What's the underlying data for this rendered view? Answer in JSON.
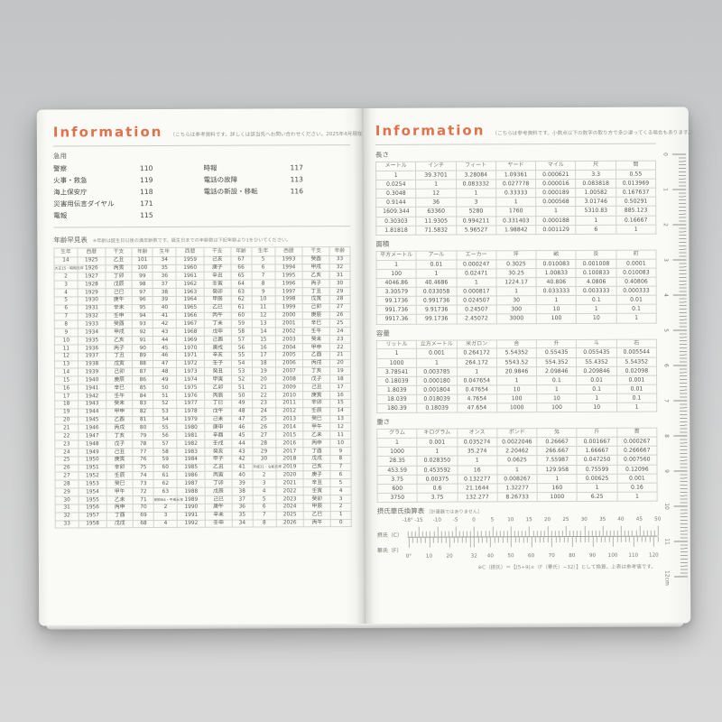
{
  "accent": "#e0714b",
  "left_page": {
    "header": {
      "title": "Information",
      "note": "（こちらは参考資料です。詳しくは該当先へお問い合わせください。2025年4月現在）"
    },
    "emergency": {
      "title": "急用",
      "col1": [
        {
          "label": "警察",
          "number": "110"
        },
        {
          "label": "火事・救急",
          "number": "119"
        },
        {
          "label": "海上保安庁",
          "number": "118"
        },
        {
          "label": "災害用伝言ダイヤル",
          "number": "171"
        },
        {
          "label": "電報",
          "number": "115"
        }
      ],
      "col2": [
        {
          "label": "時報",
          "number": "117"
        },
        {
          "label": "電話の故障",
          "number": "113"
        },
        {
          "label": "電話の新設・移転",
          "number": "116"
        }
      ]
    },
    "age_table": {
      "title": "年齢早見表",
      "note": "※年齢は誕生日以後の満年齢数です。誕生日までの年齢数は下記年齢より1をひいてください。",
      "shrink_long": 6,
      "group_every": 4,
      "col_widths": [
        7.9,
        9.4,
        9,
        7,
        7.9,
        9.4,
        9,
        7,
        7.9,
        9.4,
        9,
        7
      ],
      "headers": [
        "生年",
        "西暦",
        "干支",
        "年齢",
        "生年",
        "西暦",
        "干支",
        "年齢",
        "生年",
        "西暦",
        "干支",
        "年齢"
      ],
      "rows": [
        [
          "14",
          "1925",
          "乙丑",
          "101",
          "34",
          "1959",
          "己亥",
          "67",
          "5",
          "1993",
          "癸酉",
          "33"
        ],
        [
          "大正15・昭和元年",
          "1926",
          "丙寅",
          "100",
          "35",
          "1960",
          "庚子",
          "66",
          "6",
          "1994",
          "甲戌",
          "32"
        ],
        [
          "2",
          "1927",
          "丁卯",
          "99",
          "36",
          "1961",
          "辛丑",
          "65",
          "7",
          "1995",
          "乙亥",
          "31"
        ],
        [
          "3",
          "1928",
          "戊辰",
          "98",
          "37",
          "1962",
          "壬寅",
          "64",
          "8",
          "1996",
          "丙子",
          "30"
        ],
        [
          "4",
          "1929",
          "己巳",
          "97",
          "38",
          "1963",
          "癸卯",
          "63",
          "9",
          "1997",
          "丁丑",
          "29"
        ],
        [
          "5",
          "1930",
          "庚午",
          "96",
          "39",
          "1964",
          "甲辰",
          "62",
          "10",
          "1998",
          "戊寅",
          "28"
        ],
        [
          "6",
          "1931",
          "辛未",
          "95",
          "40",
          "1965",
          "乙巳",
          "61",
          "11",
          "1999",
          "己卯",
          "27"
        ],
        [
          "7",
          "1932",
          "壬申",
          "94",
          "41",
          "1966",
          "丙午",
          "60",
          "12",
          "2000",
          "庚辰",
          "26"
        ],
        [
          "8",
          "1933",
          "癸酉",
          "93",
          "42",
          "1967",
          "丁未",
          "59",
          "13",
          "2001",
          "辛巳",
          "25"
        ],
        [
          "9",
          "1934",
          "甲戌",
          "92",
          "43",
          "1968",
          "戊申",
          "58",
          "14",
          "2002",
          "壬午",
          "24"
        ],
        [
          "10",
          "1935",
          "乙亥",
          "91",
          "44",
          "1969",
          "己酉",
          "57",
          "15",
          "2003",
          "癸未",
          "23"
        ],
        [
          "11",
          "1936",
          "丙子",
          "90",
          "45",
          "1970",
          "庚戌",
          "56",
          "16",
          "2004",
          "甲申",
          "22"
        ],
        [
          "12",
          "1937",
          "丁丑",
          "89",
          "46",
          "1971",
          "辛亥",
          "55",
          "17",
          "2005",
          "乙酉",
          "21"
        ],
        [
          "13",
          "1938",
          "戊寅",
          "88",
          "47",
          "1972",
          "壬子",
          "54",
          "18",
          "2006",
          "丙戌",
          "20"
        ],
        [
          "14",
          "1939",
          "己卯",
          "87",
          "48",
          "1973",
          "癸丑",
          "53",
          "19",
          "2007",
          "丁亥",
          "19"
        ],
        [
          "15",
          "1940",
          "庚辰",
          "86",
          "49",
          "1974",
          "甲寅",
          "52",
          "20",
          "2008",
          "戊子",
          "18"
        ],
        [
          "16",
          "1941",
          "辛巳",
          "85",
          "50",
          "1975",
          "乙卯",
          "51",
          "21",
          "2009",
          "己丑",
          "17"
        ],
        [
          "17",
          "1942",
          "壬午",
          "84",
          "51",
          "1976",
          "丙辰",
          "50",
          "22",
          "2010",
          "庚寅",
          "16"
        ],
        [
          "18",
          "1943",
          "癸未",
          "83",
          "52",
          "1977",
          "丁巳",
          "49",
          "23",
          "2011",
          "辛卯",
          "15"
        ],
        [
          "19",
          "1944",
          "甲申",
          "82",
          "53",
          "1978",
          "戊午",
          "48",
          "24",
          "2012",
          "壬辰",
          "14"
        ],
        [
          "20",
          "1945",
          "乙酉",
          "81",
          "54",
          "1979",
          "己未",
          "47",
          "25",
          "2013",
          "癸巳",
          "13"
        ],
        [
          "21",
          "1946",
          "丙戌",
          "80",
          "55",
          "1980",
          "庚申",
          "46",
          "26",
          "2014",
          "甲午",
          "12"
        ],
        [
          "22",
          "1947",
          "丁亥",
          "79",
          "56",
          "1981",
          "辛酉",
          "45",
          "27",
          "2015",
          "乙未",
          "11"
        ],
        [
          "23",
          "1948",
          "戊子",
          "78",
          "57",
          "1982",
          "壬戌",
          "44",
          "28",
          "2016",
          "丙申",
          "10"
        ],
        [
          "24",
          "1949",
          "己丑",
          "77",
          "58",
          "1983",
          "癸亥",
          "43",
          "29",
          "2017",
          "丁酉",
          "9"
        ],
        [
          "25",
          "1950",
          "庚寅",
          "76",
          "59",
          "1984",
          "甲子",
          "42",
          "30",
          "2018",
          "戊戌",
          "8"
        ],
        [
          "26",
          "1951",
          "辛卯",
          "75",
          "60",
          "1985",
          "乙丑",
          "41",
          "平成31・令和元年",
          "2019",
          "己亥",
          "7"
        ],
        [
          "27",
          "1952",
          "壬辰",
          "74",
          "61",
          "1986",
          "丙寅",
          "40",
          "2",
          "2020",
          "庚子",
          "6"
        ],
        [
          "28",
          "1953",
          "癸巳",
          "73",
          "62",
          "1987",
          "丁卯",
          "39",
          "3",
          "2021",
          "辛丑",
          "5"
        ],
        [
          "29",
          "1954",
          "甲午",
          "72",
          "63",
          "1988",
          "戊辰",
          "38",
          "4",
          "2022",
          "壬寅",
          "4"
        ],
        [
          "30",
          "1955",
          "乙未",
          "71",
          "昭和64・平成元年",
          "1989",
          "己巳",
          "37",
          "5",
          "2023",
          "癸卯",
          "3"
        ],
        [
          "31",
          "1956",
          "丙申",
          "70",
          "2",
          "1990",
          "庚午",
          "36",
          "6",
          "2024",
          "甲辰",
          "2"
        ],
        [
          "32",
          "1957",
          "丁酉",
          "69",
          "3",
          "1991",
          "辛未",
          "35",
          "7",
          "2025",
          "乙巳",
          "1"
        ],
        [
          "33",
          "1958",
          "戊戌",
          "68",
          "4",
          "1992",
          "壬申",
          "34",
          "8",
          "2026",
          "丙午",
          "0"
        ]
      ]
    }
  },
  "right_page": {
    "header": {
      "title": "Information",
      "note": "（こちらは参考資料です。小数点以下の数字の取り方で多少違ってくる場合もあります。）"
    },
    "tables": [
      {
        "title": "長さ",
        "headers": [
          "メートル",
          "インチ",
          "フィート",
          "ヤード",
          "マイル",
          "尺",
          "間"
        ],
        "rows": [
          [
            "1",
            "39.3701",
            "3.28084",
            "1.09361",
            "0.000621",
            "3.3",
            "0.55"
          ],
          [
            "0.0254",
            "1",
            "0.083332",
            "0.027778",
            "0.000016",
            "0.083818",
            "0.013969"
          ],
          [
            "0.3048",
            "12",
            "1",
            "0.33333",
            "0.000189",
            "1.00582",
            "0.167637"
          ],
          [
            "0.9144",
            "36",
            "3",
            "1",
            "0.000568",
            "3.01746",
            "0.50291"
          ],
          [
            "1609.344",
            "63360",
            "5280",
            "1760",
            "1",
            "5310.83",
            "885.123"
          ],
          [
            "0.30303",
            "11.9305",
            "0.994211",
            "0.331403",
            "0.000188",
            "1",
            "0.16667"
          ],
          [
            "1.81818",
            "71.5832",
            "5.96527",
            "1.98842",
            "0.001129",
            "6",
            "1"
          ]
        ]
      },
      {
        "title": "面積",
        "headers": [
          "平方メートル",
          "アール",
          "エーカー",
          "坪",
          "畝",
          "反",
          "町"
        ],
        "rows": [
          [
            "1",
            "0.01",
            "0.000247",
            "0.3025",
            "0.010083",
            "0.001008",
            "0.0001"
          ],
          [
            "100",
            "1",
            "0.02471",
            "30.25",
            "1.00833",
            "0.100833",
            "0.010083"
          ],
          [
            "4046.86",
            "40.4686",
            "1",
            "1224.17",
            "40.806",
            "4.0806",
            "0.40806"
          ],
          [
            "3.30579",
            "0.033058",
            "0.000817",
            "1",
            "0.033333",
            "0.003333",
            "0.000333"
          ],
          [
            "99.1736",
            "0.991736",
            "0.024507",
            "30",
            "1",
            "0.1",
            "0.01"
          ],
          [
            "991.736",
            "9.91736",
            "0.24507",
            "300",
            "10",
            "1",
            "0.1"
          ],
          [
            "9917.36",
            "99.1736",
            "2.45072",
            "3000",
            "100",
            "10",
            "1"
          ]
        ]
      },
      {
        "title": "容量",
        "headers": [
          "リットル",
          "立方メートル",
          "米ガロン",
          "合",
          "升",
          "斗",
          "石"
        ],
        "rows": [
          [
            "1",
            "0.001",
            "0.264172",
            "5.54352",
            "0.55435",
            "0.055435",
            "0.005544"
          ],
          [
            "1000",
            "1",
            "264.172",
            "5543.52",
            "554.352",
            "55.4352",
            "5.54352"
          ],
          [
            "3.78541",
            "0.003785",
            "1",
            "20.9846",
            "2.09846",
            "0.209846",
            "0.02098"
          ],
          [
            "0.18039",
            "0.000180",
            "0.047654",
            "1",
            "0.1",
            "0.01",
            "0.001"
          ],
          [
            "1.8039",
            "0.001804",
            "0.47654",
            "10",
            "1",
            "0.1",
            "0.01"
          ],
          [
            "18.039",
            "0.018039",
            "4.7654",
            "100",
            "10",
            "1",
            "0.1"
          ],
          [
            "180.39",
            "0.18039",
            "47.654",
            "1000",
            "100",
            "10",
            "1"
          ]
        ]
      },
      {
        "title": "重さ",
        "headers": [
          "グラム",
          "キログラム",
          "オンス",
          "ポンド",
          "匁",
          "斤",
          "貫"
        ],
        "rows": [
          [
            "1",
            "0.001",
            "0.035274",
            "0.0022046",
            "0.26667",
            "0.001667",
            "0.000267"
          ],
          [
            "1000",
            "1",
            "35.274",
            "2.20462",
            "266.667",
            "1.66667",
            "0.266667"
          ],
          [
            "28.35",
            "0.028350",
            "1",
            "0.0625",
            "7.55987",
            "0.047250",
            "0.007560"
          ],
          [
            "453.59",
            "0.453592",
            "16",
            "1",
            "129.958",
            "0.75599",
            "0.12096"
          ],
          [
            "3.75",
            "0.00375",
            "0.132277",
            "0.008267",
            "1",
            "0.00625",
            "0.001"
          ],
          [
            "600",
            "0.6",
            "21.1644",
            "1.32277",
            "160",
            "1",
            "0.16"
          ],
          [
            "3750",
            "3.75",
            "132.277",
            "8.26733",
            "1000",
            "6.25",
            "1"
          ]
        ]
      }
    ],
    "temperature": {
      "title": "摂氏華氏換算表",
      "title_note": "［計量器ではありません］",
      "celsius_label": "摂氏（C）",
      "fahrenheit_label": "華氏（F）",
      "range": {
        "c_min": -18,
        "c_max": 50
      },
      "celsius": [
        {
          "v": -18,
          "label": "-18°"
        },
        {
          "v": -15,
          "label": "-15"
        },
        {
          "v": -10,
          "label": "-10"
        },
        {
          "v": -5,
          "label": "-5"
        },
        {
          "v": 0,
          "label": "0"
        },
        {
          "v": 5,
          "label": "5"
        },
        {
          "v": 10,
          "label": "10"
        },
        {
          "v": 15,
          "label": "15"
        },
        {
          "v": 20,
          "label": "20"
        },
        {
          "v": 25,
          "label": "25"
        },
        {
          "v": 30,
          "label": "30"
        },
        {
          "v": 35,
          "label": "35"
        },
        {
          "v": 40,
          "label": "40"
        },
        {
          "v": 45,
          "label": "45"
        },
        {
          "v": 50,
          "label": "50"
        }
      ],
      "fahrenheit": [
        {
          "v": 0,
          "label": "0°"
        },
        {
          "v": 10,
          "label": "10"
        },
        {
          "v": 20,
          "label": "20"
        },
        {
          "v": 32,
          "label": "32"
        },
        {
          "v": 40,
          "label": "40"
        },
        {
          "v": 50,
          "label": "50"
        },
        {
          "v": 60,
          "label": "60"
        },
        {
          "v": 70,
          "label": "70"
        },
        {
          "v": 80,
          "label": "80"
        },
        {
          "v": 90,
          "label": "90"
        },
        {
          "v": 100,
          "label": "100"
        },
        {
          "v": 110,
          "label": "110"
        },
        {
          "v": 120,
          "label": "120"
        }
      ],
      "formula": "※C（摂氏）＝【(5÷9)×（F（華氏）−32）】として換算。上表は参考値です。"
    },
    "ruler": {
      "unit_labels": [
        "0",
        "1",
        "2",
        "3",
        "4",
        "5",
        "6",
        "7",
        "8",
        "9",
        "10",
        "11",
        "12cm"
      ]
    }
  }
}
